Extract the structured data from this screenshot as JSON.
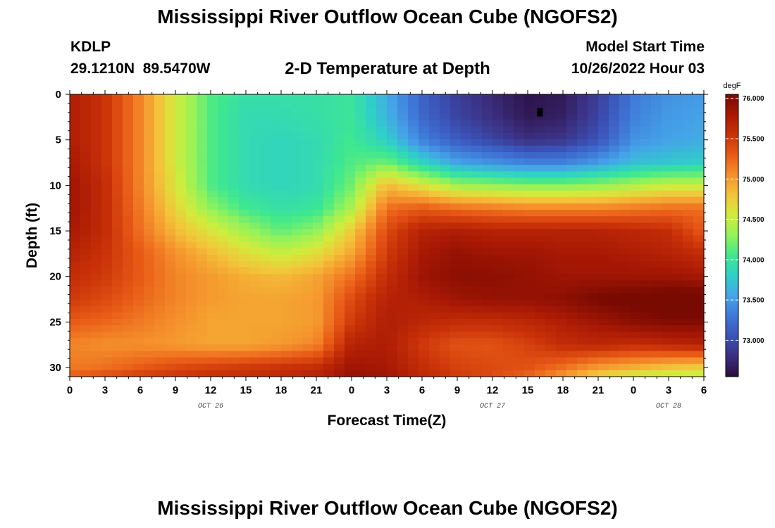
{
  "title": "Mississippi River Outflow Ocean Cube (NGOFS2)",
  "station": "KDLP",
  "location": "29.1210N  89.5470W",
  "subtitle": "2-D Temperature at Depth",
  "model_start": {
    "label": "Model Start Time",
    "value": "10/26/2022 Hour 03"
  },
  "chart_data": {
    "type": "heatmap",
    "title": "2-D Temperature at Depth",
    "xlabel": "Forecast Time(Z)",
    "ylabel": "Depth (ft)",
    "x_ticks": [
      "0",
      "3",
      "6",
      "9",
      "12",
      "15",
      "18",
      "21",
      "0",
      "3",
      "6",
      "9",
      "12",
      "15",
      "18",
      "21",
      "0",
      "3",
      "6"
    ],
    "x_range_hours": [
      0,
      54
    ],
    "date_labels": [
      {
        "text": "OCT 26",
        "hour": 12
      },
      {
        "text": "OCT 27",
        "hour": 36
      },
      {
        "text": "OCT 28",
        "hour": 51
      }
    ],
    "y_ticks": [
      0,
      5,
      10,
      15,
      20,
      25,
      30
    ],
    "y_range_ft": [
      0,
      31
    ],
    "y_inverted": true,
    "colorbar": {
      "unit": "degF",
      "ticks": [
        "76.000",
        "75.500",
        "75.000",
        "74.500",
        "74.000",
        "73.500",
        "73.000"
      ],
      "range": [
        72.55,
        76.05
      ],
      "colors": [
        "#2a0c3c",
        "#3b2f80",
        "#3b53b8",
        "#3f78d8",
        "#45a3e8",
        "#2fd0c8",
        "#3ee88f",
        "#93f25a",
        "#d2ec3c",
        "#f3c43a",
        "#f5902c",
        "#e85a16",
        "#c93208",
        "#a81804",
        "#780a02"
      ]
    },
    "hours": [
      0,
      3,
      6,
      9,
      12,
      15,
      18,
      21,
      24,
      27,
      30,
      33,
      36,
      39,
      42,
      45,
      48,
      51,
      54
    ],
    "depths_ft": [
      0,
      2.5,
      5,
      7.5,
      10,
      12.5,
      15,
      17.5,
      20,
      22.5,
      25,
      27.5,
      30,
      31
    ],
    "temperature_degF": [
      [
        75.75,
        75.55,
        75.1,
        74.55,
        74.1,
        73.95,
        73.95,
        73.95,
        74.0,
        73.6,
        73.15,
        72.9,
        72.75,
        72.6,
        72.65,
        72.9,
        73.3,
        73.45,
        73.5
      ],
      [
        75.75,
        75.55,
        75.1,
        74.55,
        74.1,
        73.9,
        73.9,
        73.95,
        74.0,
        73.65,
        73.2,
        72.95,
        72.8,
        72.65,
        72.7,
        72.95,
        73.35,
        73.5,
        73.55
      ],
      [
        75.75,
        75.55,
        75.1,
        74.55,
        74.1,
        73.9,
        73.85,
        73.9,
        74.05,
        73.8,
        73.35,
        73.1,
        72.95,
        72.8,
        72.85,
        73.05,
        73.45,
        73.55,
        73.6
      ],
      [
        75.8,
        75.55,
        75.1,
        74.55,
        74.1,
        73.9,
        73.85,
        73.9,
        74.1,
        74.2,
        73.85,
        73.55,
        73.45,
        73.35,
        73.35,
        73.5,
        73.7,
        73.75,
        73.8
      ],
      [
        75.85,
        75.6,
        75.1,
        74.6,
        74.1,
        73.9,
        73.85,
        73.9,
        74.2,
        74.85,
        74.6,
        74.35,
        74.3,
        74.25,
        74.25,
        74.3,
        74.4,
        74.5,
        74.5
      ],
      [
        75.85,
        75.6,
        75.15,
        74.7,
        74.3,
        74.05,
        73.95,
        74.0,
        74.4,
        75.2,
        75.3,
        75.2,
        75.15,
        75.1,
        75.1,
        75.1,
        75.15,
        75.2,
        75.2
      ],
      [
        75.8,
        75.6,
        75.2,
        74.85,
        74.6,
        74.35,
        74.15,
        74.3,
        74.75,
        75.4,
        75.7,
        75.75,
        75.7,
        75.7,
        75.7,
        75.7,
        75.65,
        75.6,
        75.3
      ],
      [
        75.7,
        75.55,
        75.3,
        75.05,
        74.85,
        74.65,
        74.5,
        74.65,
        74.95,
        75.5,
        75.8,
        75.9,
        75.85,
        75.85,
        75.8,
        75.8,
        75.75,
        75.7,
        75.6
      ],
      [
        75.6,
        75.5,
        75.3,
        75.1,
        75.0,
        74.9,
        74.85,
        74.95,
        75.2,
        75.6,
        75.85,
        75.95,
        75.95,
        75.9,
        75.85,
        75.85,
        75.85,
        75.85,
        75.8
      ],
      [
        75.5,
        75.4,
        75.25,
        75.1,
        75.0,
        74.95,
        74.95,
        75.0,
        75.4,
        75.7,
        75.75,
        75.85,
        75.9,
        75.9,
        75.95,
        76.05,
        76.1,
        76.15,
        76.15
      ],
      [
        75.3,
        75.25,
        75.15,
        75.05,
        74.95,
        74.95,
        74.95,
        75.0,
        75.5,
        75.75,
        75.65,
        75.6,
        75.6,
        75.65,
        75.75,
        75.85,
        75.95,
        76.0,
        76.0
      ],
      [
        75.1,
        75.05,
        75.05,
        75.0,
        74.95,
        74.95,
        75.0,
        75.1,
        75.7,
        75.75,
        75.5,
        75.35,
        75.35,
        75.45,
        75.6,
        75.65,
        75.6,
        75.65,
        75.7
      ],
      [
        75.15,
        75.2,
        75.3,
        75.4,
        75.45,
        75.5,
        75.55,
        75.6,
        75.85,
        75.8,
        75.6,
        75.45,
        75.4,
        75.35,
        75.2,
        75.0,
        74.9,
        74.8,
        74.75
      ],
      [
        75.3,
        75.4,
        75.5,
        75.55,
        75.6,
        75.6,
        75.65,
        75.7,
        75.9,
        75.85,
        75.65,
        75.5,
        75.4,
        75.25,
        75.0,
        74.7,
        74.5,
        74.45,
        74.45
      ]
    ]
  }
}
